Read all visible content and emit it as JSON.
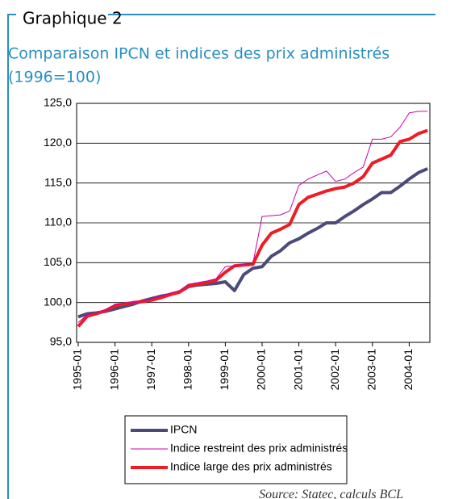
{
  "header": "Graphique 2",
  "source": "Source: Statec, calculs BCL",
  "chart_data": {
    "type": "line",
    "title": "Comparaison IPCN et indices des prix administrés",
    "subtitle": "(1996=100)",
    "categories": [
      "1995-01",
      null,
      null,
      null,
      "1996-01",
      null,
      null,
      null,
      "1997-01",
      null,
      null,
      null,
      "1998-01",
      null,
      null,
      null,
      "1999-01",
      null,
      null,
      null,
      "2000-01",
      null,
      null,
      null,
      "2001-01",
      null,
      null,
      null,
      "2002-01",
      null,
      null,
      null,
      "2003-01",
      null,
      null,
      null,
      "2004-01",
      null,
      null
    ],
    "series": [
      {
        "name": "IPCN",
        "color": "#4b4a78",
        "width": 4,
        "values": [
          98.2,
          98.6,
          98.7,
          98.9,
          99.2,
          99.5,
          99.8,
          100.2,
          100.5,
          100.8,
          101.0,
          101.3,
          102.0,
          102.2,
          102.3,
          102.4,
          102.6,
          101.5,
          103.5,
          104.3,
          104.5,
          105.8,
          106.5,
          107.5,
          108.0,
          108.7,
          109.3,
          110.0,
          110.0,
          110.8,
          111.5,
          112.3,
          113.0,
          113.8,
          113.8,
          114.6,
          115.5,
          116.3,
          116.8
        ]
      },
      {
        "name": "Indice restreint des prix administrés",
        "color": "#cc00aa",
        "width": 1,
        "values": [
          97.5,
          98.5,
          98.7,
          99.0,
          99.8,
          99.9,
          100.0,
          100.1,
          100.5,
          100.8,
          101.2,
          101.5,
          102.3,
          102.5,
          102.7,
          103.0,
          104.5,
          104.6,
          104.8,
          104.9,
          110.8,
          110.9,
          111.0,
          111.5,
          114.7,
          115.5,
          116.0,
          116.5,
          115.2,
          115.5,
          116.3,
          117.0,
          120.5,
          120.5,
          120.8,
          122.0,
          123.8,
          124.0,
          124.0
        ]
      },
      {
        "name": "Indice large des prix administrés",
        "color": "#ee1c25",
        "width": 4,
        "values": [
          97.0,
          98.3,
          98.6,
          99.0,
          99.6,
          99.8,
          100.0,
          100.1,
          100.3,
          100.6,
          101.0,
          101.3,
          102.1,
          102.3,
          102.5,
          102.8,
          103.8,
          104.6,
          104.7,
          104.8,
          107.2,
          108.7,
          109.2,
          109.8,
          112.3,
          113.2,
          113.6,
          114.0,
          114.3,
          114.5,
          115.0,
          115.8,
          117.5,
          118.0,
          118.5,
          120.2,
          120.5,
          121.2,
          121.6
        ]
      }
    ],
    "ylim": [
      95,
      125
    ],
    "yticks": [
      {
        "value": 95,
        "label": "95,0"
      },
      {
        "value": 100,
        "label": "100,0"
      },
      {
        "value": 105,
        "label": "105,0"
      },
      {
        "value": 110,
        "label": "110,0"
      },
      {
        "value": 115,
        "label": "115,0"
      },
      {
        "value": 120,
        "label": "120,0"
      },
      {
        "value": 125,
        "label": "125,0"
      }
    ],
    "grid": true
  }
}
